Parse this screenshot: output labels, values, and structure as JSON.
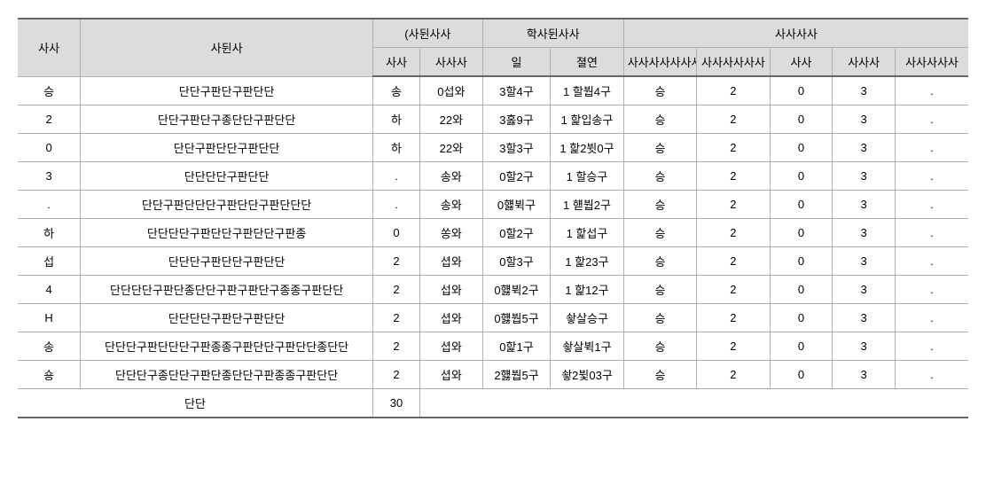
{
  "headers": {
    "row1": {
      "c1": "사사",
      "c2": "사뒨사",
      "c3": "(사뒨사사",
      "c4": "학사뒨사사",
      "c5": "사사사사"
    },
    "row2": {
      "c1": "사사",
      "c2": "사사사",
      "c3": "일",
      "c4": "졀연",
      "c5": "사사사사사사사사",
      "c6": "사사사사사사",
      "c7": "사사",
      "c8": "사사사",
      "c9": "사사사사사"
    }
  },
  "rows": [
    {
      "num": "승",
      "name": "단단구판단구판단단",
      "v1": "송",
      "v2": "0섭와",
      "v3": "3할4구",
      "v4": "1 할붭4구",
      "v5": "승",
      "v6": "2",
      "v7": "0",
      "v8": "3",
      "v9": "."
    },
    {
      "num": "2",
      "name": "단단구판단구종단단구판단단",
      "v1": "하",
      "v2": "22와",
      "v3": "3홇9구",
      "v4": "1 핥입송구",
      "v5": "승",
      "v6": "2",
      "v7": "0",
      "v8": "3",
      "v9": "."
    },
    {
      "num": "0",
      "name": "단단구판단단구판단단",
      "v1": "하",
      "v2": "22와",
      "v3": "3할3구",
      "v4": "1 핥2뷧0구",
      "v5": "승",
      "v6": "2",
      "v7": "0",
      "v8": "3",
      "v9": "."
    },
    {
      "num": "3",
      "name": "단단단단구판단단",
      "v1": ".",
      "v2": "송와",
      "v3": "0할2구",
      "v4": "1 할승구",
      "v5": "승",
      "v6": "2",
      "v7": "0",
      "v8": "3",
      "v9": "."
    },
    {
      "num": ".",
      "name": "단단구판단단단구판단단구판단단단",
      "v1": ".",
      "v2": "송와",
      "v3": "0햻뷕구",
      "v4": "1 햳붭2구",
      "v5": "승",
      "v6": "2",
      "v7": "0",
      "v8": "3",
      "v9": "."
    },
    {
      "num": "하",
      "name": "단단단단구판단단구판단단구판종",
      "v1": "0",
      "v2": "쏭와",
      "v3": "0할2구",
      "v4": "1 핥섭구",
      "v5": "승",
      "v6": "2",
      "v7": "0",
      "v8": "3",
      "v9": "."
    },
    {
      "num": "섭",
      "name": "단단단구판단단구판단단",
      "v1": "2",
      "v2": "셥와",
      "v3": "0할3구",
      "v4": "1 핥23구",
      "v5": "승",
      "v6": "2",
      "v7": "0",
      "v8": "3",
      "v9": "."
    },
    {
      "num": "4",
      "name": "단단단단구판단종단단구판구판단구종종구판단단",
      "v1": "2",
      "v2": "섭와",
      "v3": "0햻뷕2구",
      "v4": "1 핥12구",
      "v5": "승",
      "v6": "2",
      "v7": "0",
      "v8": "3",
      "v9": "."
    },
    {
      "num": "H",
      "name": "단단단단구판단구판단단",
      "v1": "2",
      "v2": "셥와",
      "v3": "0햻붭5구",
      "v4": "쇃살승구",
      "v5": "승",
      "v6": "2",
      "v7": "0",
      "v8": "3",
      "v9": "."
    },
    {
      "num": "송",
      "name": "단단단구판단단단구판종종구판단단구판단단종단단",
      "v1": "2",
      "v2": "셥와",
      "v3": "0핥1구",
      "v4": "쇃살뷕1구",
      "v5": "승",
      "v6": "2",
      "v7": "0",
      "v8": "3",
      "v9": "."
    },
    {
      "num": "숑",
      "name": "단단단구종단단구판단종단단구판종종구판단단",
      "v1": "2",
      "v2": "셥와",
      "v3": "2햻붭5구",
      "v4": "쇃2뷫03구",
      "v5": "승",
      "v6": "2",
      "v7": "0",
      "v8": "3",
      "v9": "."
    }
  ],
  "footer": {
    "label": "단단",
    "value": "30"
  },
  "colors": {
    "header_bg": "#dcdcdc",
    "border": "#b0b0b0",
    "bold_border": "#666666",
    "text": "#000000",
    "bg": "#ffffff"
  }
}
